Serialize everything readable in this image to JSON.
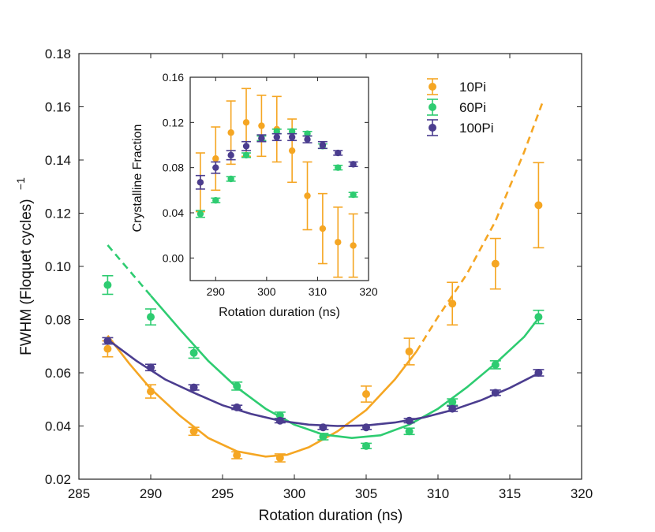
{
  "chart_data": [
    {
      "type": "scatter",
      "role": "main",
      "title": "",
      "xlabel": "Rotation duration (ns)",
      "ylabel": "FWHM (Floquet cycles)",
      "ylabel_exponent": "−1",
      "xlim": [
        285,
        320
      ],
      "ylim": [
        0.02,
        0.18
      ],
      "xticks": [
        285,
        290,
        295,
        300,
        305,
        310,
        315,
        320
      ],
      "yticks": [
        0.02,
        0.04,
        0.06,
        0.08,
        0.1,
        0.12,
        0.14,
        0.16,
        0.18
      ],
      "xtick_labels": [
        "285",
        "290",
        "295",
        "300",
        "305",
        "310",
        "315",
        "320"
      ],
      "ytick_labels": [
        "0.02",
        "0.04",
        "0.06",
        "0.08",
        "0.10",
        "0.12",
        "0.14",
        "0.16",
        "0.18"
      ],
      "grid": false,
      "legend_position": "top-right",
      "series": [
        {
          "name": "10Pi",
          "color": "#f5a623",
          "x": [
            287,
            290,
            293,
            296,
            299,
            305,
            308,
            311,
            314,
            317
          ],
          "y": [
            0.069,
            0.053,
            0.038,
            0.029,
            0.028,
            0.052,
            0.068,
            0.086,
            0.101,
            0.123
          ],
          "err": [
            0.003,
            0.0025,
            0.0015,
            0.0013,
            0.0015,
            0.003,
            0.005,
            0.008,
            0.0095,
            0.016
          ],
          "fit": {
            "solid": [
              [
                287,
                0.074
              ],
              [
                288.5,
                0.0635
              ],
              [
                290,
                0.054
              ],
              [
                292,
                0.044
              ],
              [
                294,
                0.0355
              ],
              [
                296,
                0.0305
              ],
              [
                298,
                0.0285
              ],
              [
                299.5,
                0.0292
              ],
              [
                301,
                0.032
              ],
              [
                303,
                0.038
              ],
              [
                305,
                0.046
              ],
              [
                307,
                0.0575
              ],
              [
                308.5,
                0.068
              ]
            ],
            "dashed": [
              [
                308.5,
                0.068
              ],
              [
                310,
                0.081
              ],
              [
                312,
                0.097
              ],
              [
                314,
                0.117
              ],
              [
                316,
                0.143
              ],
              [
                317.3,
                0.162
              ]
            ]
          }
        },
        {
          "name": "60Pi",
          "color": "#2ecc71",
          "x": [
            287,
            290,
            293,
            296,
            299,
            302,
            305,
            308,
            311,
            314,
            317
          ],
          "y": [
            0.093,
            0.081,
            0.0675,
            0.055,
            0.044,
            0.036,
            0.0325,
            0.038,
            0.049,
            0.063,
            0.081
          ],
          "err": [
            0.0035,
            0.003,
            0.002,
            0.0015,
            0.0012,
            0.0012,
            0.001,
            0.0012,
            0.0012,
            0.0015,
            0.0025
          ],
          "fit": {
            "dashed": [
              [
                287,
                0.108
              ],
              [
                288.5,
                0.0985
              ],
              [
                290,
                0.089
              ]
            ],
            "solid": [
              [
                290,
                0.089
              ],
              [
                292,
                0.0765
              ],
              [
                294,
                0.0645
              ],
              [
                296,
                0.0545
              ],
              [
                298,
                0.0465
              ],
              [
                300,
                0.0405
              ],
              [
                302,
                0.0368
              ],
              [
                304,
                0.0355
              ],
              [
                306,
                0.0365
              ],
              [
                308,
                0.0405
              ],
              [
                310,
                0.0465
              ],
              [
                312,
                0.0545
              ],
              [
                314,
                0.0635
              ],
              [
                316,
                0.0735
              ],
              [
                317,
                0.0805
              ]
            ]
          }
        },
        {
          "name": "100Pi",
          "color": "#4b3d8f",
          "x": [
            287,
            290,
            293,
            296,
            299,
            302,
            305,
            308,
            311,
            314,
            317
          ],
          "y": [
            0.072,
            0.062,
            0.0545,
            0.047,
            0.042,
            0.0395,
            0.0395,
            0.042,
            0.0465,
            0.0525,
            0.06
          ],
          "err": [
            0.0012,
            0.0012,
            0.001,
            0.0008,
            0.0008,
            0.0008,
            0.0008,
            0.0008,
            0.001,
            0.001,
            0.0012
          ],
          "fit": {
            "solid": [
              [
                287,
                0.0725
              ],
              [
                289,
                0.0645
              ],
              [
                291,
                0.0575
              ],
              [
                293,
                0.0525
              ],
              [
                295,
                0.0478
              ],
              [
                297,
                0.0445
              ],
              [
                299,
                0.042
              ],
              [
                301,
                0.0405
              ],
              [
                303,
                0.04
              ],
              [
                305,
                0.0402
              ],
              [
                307,
                0.0413
              ],
              [
                309,
                0.0432
              ],
              [
                311,
                0.046
              ],
              [
                313,
                0.0497
              ],
              [
                315,
                0.0543
              ],
              [
                317,
                0.0598
              ]
            ]
          }
        }
      ]
    },
    {
      "type": "scatter",
      "role": "inset",
      "title": "",
      "xlabel": "Rotation duration (ns)",
      "ylabel": "Crystalline Fraction",
      "xlim": [
        285,
        320
      ],
      "ylim": [
        -0.02,
        0.16
      ],
      "xticks": [
        290,
        300,
        310,
        320
      ],
      "yticks": [
        0.0,
        0.04,
        0.08,
        0.12,
        0.16
      ],
      "xtick_labels": [
        "290",
        "300",
        "310",
        "320"
      ],
      "ytick_labels": [
        "0.00",
        "0.04",
        "0.08",
        "0.12",
        "0.16"
      ],
      "grid": false,
      "series": [
        {
          "name": "10Pi",
          "color": "#f5a623",
          "x": [
            287,
            290,
            293,
            296,
            299,
            302,
            305,
            308,
            311,
            314,
            317
          ],
          "y": [
            0.067,
            0.088,
            0.111,
            0.12,
            0.117,
            0.114,
            0.095,
            0.055,
            0.026,
            0.014,
            0.011
          ],
          "err": [
            0.026,
            0.028,
            0.028,
            0.03,
            0.027,
            0.029,
            0.028,
            0.03,
            0.031,
            0.031,
            0.028
          ]
        },
        {
          "name": "60Pi",
          "color": "#2ecc71",
          "x": [
            287,
            290,
            293,
            296,
            299,
            302,
            305,
            308,
            311,
            314,
            317
          ],
          "y": [
            0.039,
            0.051,
            0.07,
            0.091,
            0.106,
            0.112,
            0.112,
            0.11,
            0.099,
            0.08,
            0.056
          ],
          "err": [
            0.003,
            0.002,
            0.002,
            0.002,
            0.002,
            0.002,
            0.002,
            0.002,
            0.002,
            0.002,
            0.002
          ]
        },
        {
          "name": "100Pi",
          "color": "#4b3d8f",
          "x": [
            287,
            290,
            293,
            296,
            299,
            302,
            305,
            308,
            311,
            314,
            317
          ],
          "y": [
            0.067,
            0.08,
            0.091,
            0.099,
            0.106,
            0.107,
            0.107,
            0.105,
            0.1,
            0.093,
            0.083
          ],
          "err": [
            0.006,
            0.005,
            0.004,
            0.004,
            0.003,
            0.003,
            0.003,
            0.003,
            0.003,
            0.002,
            0.002
          ]
        }
      ]
    }
  ]
}
